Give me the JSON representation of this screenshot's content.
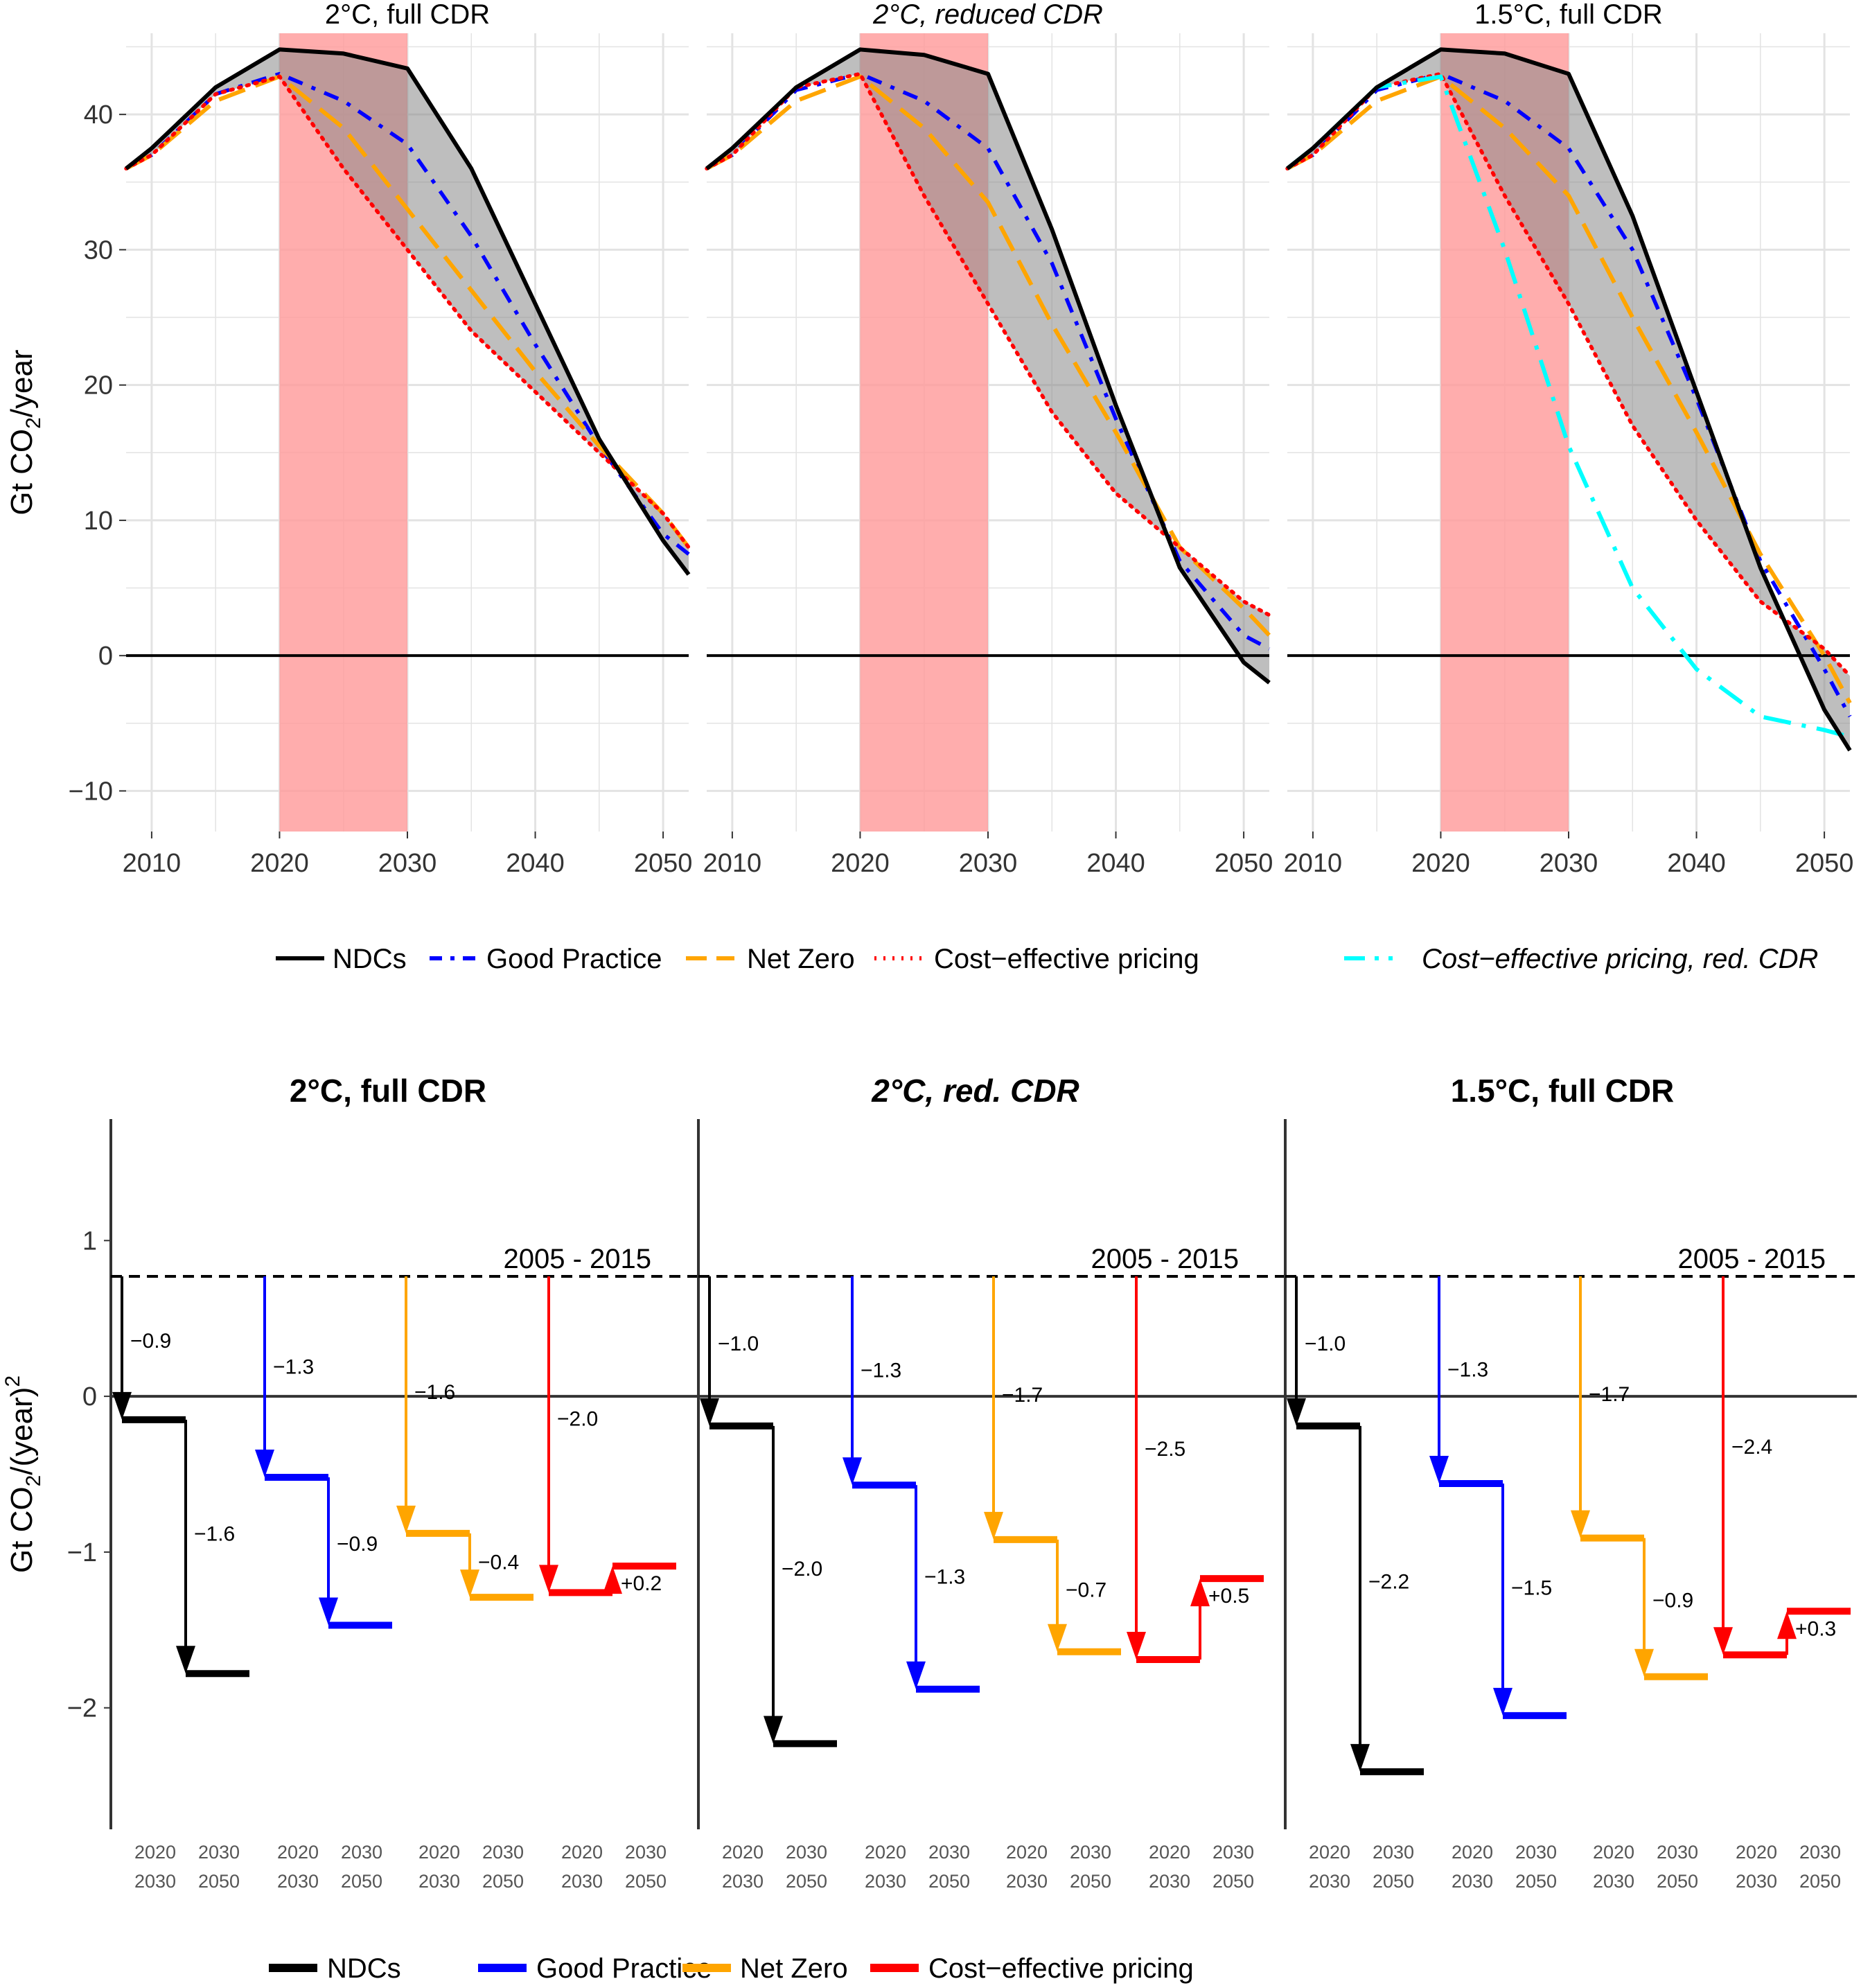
{
  "chart_data": [
    {
      "type": "line",
      "panel": "top",
      "ylabel": "Gt CO2/year",
      "ylim": [
        -13,
        46
      ],
      "xlim": [
        2008,
        2052
      ],
      "xticks": [
        2010,
        2020,
        2030,
        2040,
        2050
      ],
      "yticks": [
        -10,
        0,
        10,
        20,
        30,
        40
      ],
      "ytick_labels": [
        "−10",
        "0",
        "10",
        "20",
        "30",
        "40"
      ],
      "highlight_range": [
        2020,
        2030
      ],
      "shaded_between": [
        "NDCs",
        "Cost-effective pricing"
      ],
      "grid": true,
      "legend_position": "bottom",
      "colors": {
        "NDCs": "#000000",
        "Good Practice": "#0000ff",
        "Net Zero": "#ffa500",
        "Cost-effective pricing": "#ff0000",
        "Cost-effective pricing, red. CDR": "#00ffff",
        "highlight": "#ff9999",
        "shade": "#888888"
      },
      "legend": [
        {
          "name": "NDCs",
          "text": "NDCs",
          "style": "solid"
        },
        {
          "name": "Good Practice",
          "text": "Good Practice",
          "style": "dashdot"
        },
        {
          "name": "Net Zero",
          "text": "Net Zero",
          "style": "longdash"
        },
        {
          "name": "Cost-effective pricing",
          "text": "Cost−effective pricing",
          "style": "dotted"
        },
        {
          "name": "Cost-effective pricing, red. CDR",
          "text": "Cost−effective pricing, red. CDR",
          "style": "dashdot-cyan",
          "italic": true
        }
      ],
      "panels": [
        {
          "title": "2°C, full CDR",
          "italic": false,
          "series": [
            {
              "name": "NDCs",
              "x": [
                2008,
                2010,
                2015,
                2020,
                2025,
                2030,
                2035,
                2040,
                2045,
                2050,
                2052
              ],
              "y": [
                36.0,
                37.5,
                42.0,
                44.8,
                44.5,
                43.4,
                36.0,
                26.0,
                16.0,
                8.5,
                6.0
              ]
            },
            {
              "name": "Good Practice",
              "x": [
                2008,
                2010,
                2015,
                2020,
                2025,
                2030,
                2035,
                2040,
                2045,
                2050,
                2052
              ],
              "y": [
                36.0,
                37.0,
                41.5,
                43.0,
                41.0,
                37.8,
                31.0,
                23.0,
                15.5,
                9.0,
                7.5
              ]
            },
            {
              "name": "Net Zero",
              "x": [
                2008,
                2010,
                2015,
                2020,
                2025,
                2030,
                2035,
                2040,
                2045,
                2050,
                2052
              ],
              "y": [
                36.0,
                37.0,
                41.0,
                42.8,
                39.0,
                33.0,
                27.0,
                21.0,
                15.5,
                10.5,
                8.0
              ]
            },
            {
              "name": "Cost-effective pricing",
              "x": [
                2008,
                2010,
                2015,
                2020,
                2025,
                2030,
                2035,
                2040,
                2045,
                2050,
                2052
              ],
              "y": [
                36.0,
                37.0,
                41.5,
                42.8,
                36.0,
                30.0,
                24.0,
                19.5,
                15.0,
                10.5,
                8.0
              ]
            }
          ]
        },
        {
          "title": "2°C, reduced CDR",
          "italic": true,
          "series": [
            {
              "name": "NDCs",
              "x": [
                2008,
                2010,
                2015,
                2020,
                2025,
                2030,
                2035,
                2040,
                2045,
                2050,
                2052
              ],
              "y": [
                36.0,
                37.5,
                42.0,
                44.8,
                44.4,
                43.0,
                31.5,
                18.5,
                6.5,
                -0.5,
                -2.0
              ]
            },
            {
              "name": "Good Practice",
              "x": [
                2008,
                2010,
                2015,
                2020,
                2025,
                2030,
                2035,
                2040,
                2045,
                2050,
                2052
              ],
              "y": [
                36.0,
                37.0,
                41.8,
                43.0,
                41.0,
                37.5,
                29.0,
                17.5,
                7.0,
                1.5,
                0.5
              ]
            },
            {
              "name": "Net Zero",
              "x": [
                2008,
                2010,
                2015,
                2020,
                2025,
                2030,
                2035,
                2040,
                2045,
                2050,
                2052
              ],
              "y": [
                36.0,
                37.0,
                41.0,
                42.8,
                39.0,
                33.5,
                24.5,
                16.5,
                8.0,
                3.5,
                1.5
              ]
            },
            {
              "name": "Cost-effective pricing",
              "x": [
                2008,
                2010,
                2015,
                2020,
                2025,
                2030,
                2035,
                2040,
                2045,
                2050,
                2052
              ],
              "y": [
                36.0,
                37.0,
                42.0,
                43.0,
                34.0,
                26.0,
                18.0,
                12.0,
                8.0,
                4.0,
                3.0
              ]
            }
          ]
        },
        {
          "title": "1.5°C, full CDR",
          "italic": false,
          "series": [
            {
              "name": "NDCs",
              "x": [
                2008,
                2010,
                2015,
                2020,
                2025,
                2030,
                2035,
                2040,
                2045,
                2050,
                2052
              ],
              "y": [
                36.0,
                37.5,
                42.0,
                44.8,
                44.5,
                43.0,
                32.5,
                19.5,
                6.5,
                -4.0,
                -7.0
              ]
            },
            {
              "name": "Good Practice",
              "x": [
                2008,
                2010,
                2015,
                2020,
                2025,
                2030,
                2035,
                2040,
                2045,
                2050,
                2052
              ],
              "y": [
                36.0,
                37.0,
                41.8,
                43.0,
                41.0,
                37.5,
                30.0,
                19.0,
                7.0,
                -1.0,
                -4.5
              ]
            },
            {
              "name": "Net Zero",
              "x": [
                2008,
                2010,
                2015,
                2020,
                2025,
                2030,
                2035,
                2040,
                2045,
                2050,
                2052
              ],
              "y": [
                36.0,
                37.0,
                41.0,
                42.8,
                39.0,
                34.0,
                25.0,
                16.5,
                7.5,
                0.0,
                -3.5
              ]
            },
            {
              "name": "Cost-effective pricing",
              "x": [
                2008,
                2010,
                2015,
                2020,
                2025,
                2030,
                2035,
                2040,
                2045,
                2050,
                2052
              ],
              "y": [
                36.0,
                37.0,
                42.0,
                43.0,
                34.0,
                26.0,
                17.0,
                10.0,
                4.0,
                0.5,
                -1.5
              ]
            },
            {
              "name": "Cost-effective pricing, red. CDR",
              "x": [
                2008,
                2010,
                2015,
                2020,
                2025,
                2030,
                2035,
                2040,
                2045,
                2050,
                2052
              ],
              "y": [
                36.0,
                37.5,
                42.0,
                42.8,
                30.0,
                15.5,
                5.0,
                -1.0,
                -4.5,
                -5.5,
                -6.0
              ]
            }
          ]
        }
      ]
    },
    {
      "type": "bar",
      "panel": "bottom",
      "ylabel": "Gt CO2/(year)2",
      "ylim": [
        -2.78,
        1.78
      ],
      "yticks": [
        -2,
        -1,
        0,
        1
      ],
      "ytick_labels": [
        "−2",
        "−1",
        "0",
        "1"
      ],
      "reference_level": 0.77,
      "reference_label": "2005 - 2015",
      "period_labels": [
        [
          "2020",
          "2030"
        ],
        [
          "2030",
          "2050"
        ]
      ],
      "legend_position": "bottom",
      "colors": {
        "NDCs": "#000000",
        "Good Practice": "#0000ff",
        "Net Zero": "#ffa500",
        "Cost-effective pricing": "#ff0000"
      },
      "legend": [
        {
          "name": "NDCs",
          "text": "NDCs"
        },
        {
          "name": "Good Practice",
          "text": "Good Practice"
        },
        {
          "name": "Net Zero",
          "text": "Net Zero"
        },
        {
          "name": "Cost-effective pricing",
          "text": "Cost−effective pricing"
        }
      ],
      "panels": [
        {
          "title": "2°C, full CDR",
          "italic": false,
          "groups": [
            {
              "name": "NDCs",
              "values": [
                -0.15,
                -1.78
              ],
              "changes": [
                "−0.9",
                "−1.6"
              ]
            },
            {
              "name": "Good Practice",
              "values": [
                -0.52,
                -1.47
              ],
              "changes": [
                "−1.3",
                "−0.9"
              ]
            },
            {
              "name": "Net Zero",
              "values": [
                -0.88,
                -1.29
              ],
              "changes": [
                "−1.6",
                "−0.4"
              ]
            },
            {
              "name": "Cost-effective pricing",
              "values": [
                -1.26,
                -1.09
              ],
              "changes": [
                "−2.0",
                "+0.2"
              ]
            }
          ]
        },
        {
          "title": "2°C, red. CDR",
          "italic": true,
          "groups": [
            {
              "name": "NDCs",
              "values": [
                -0.19,
                -2.23
              ],
              "changes": [
                "−1.0",
                "−2.0"
              ]
            },
            {
              "name": "Good Practice",
              "values": [
                -0.57,
                -1.88
              ],
              "changes": [
                "−1.3",
                "−1.3"
              ]
            },
            {
              "name": "Net Zero",
              "values": [
                -0.92,
                -1.64
              ],
              "changes": [
                "−1.7",
                "−0.7"
              ]
            },
            {
              "name": "Cost-effective pricing",
              "values": [
                -1.69,
                -1.17
              ],
              "changes": [
                "−2.5",
                "+0.5"
              ]
            }
          ]
        },
        {
          "title": "1.5°C, full CDR",
          "italic": false,
          "groups": [
            {
              "name": "NDCs",
              "values": [
                -0.19,
                -2.41
              ],
              "changes": [
                "−1.0",
                "−2.2"
              ]
            },
            {
              "name": "Good Practice",
              "values": [
                -0.56,
                -2.05
              ],
              "changes": [
                "−1.3",
                "−1.5"
              ]
            },
            {
              "name": "Net Zero",
              "values": [
                -0.91,
                -1.8
              ],
              "changes": [
                "−1.7",
                "−0.9"
              ]
            },
            {
              "name": "Cost-effective pricing",
              "values": [
                -1.66,
                -1.38
              ],
              "changes": [
                "−2.4",
                "+0.3"
              ]
            }
          ]
        }
      ]
    }
  ]
}
